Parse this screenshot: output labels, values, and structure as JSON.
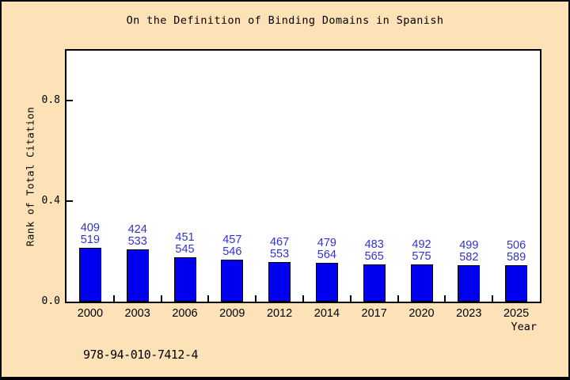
{
  "frame": {
    "footer_isbn": "978-94-010-7412-4"
  },
  "colors": {
    "background": "#fce2b6",
    "plot_background": "#ffffff",
    "bar_fill": "#0000ee",
    "bar_edge": "#000000",
    "value_label": "#3333cc",
    "axis": "#000000"
  },
  "chart_data": {
    "type": "bar",
    "title": "On the Definition of Binding Domains in Spanish",
    "xlabel": "Year",
    "ylabel": "Rank of Total Citation",
    "ylim": [
      0,
      1.0
    ],
    "yticks": [
      "0.0",
      "0.4",
      "0.8"
    ],
    "grid": false,
    "legend": false,
    "categories": [
      "2000",
      "2003",
      "2006",
      "2009",
      "2012",
      "2014",
      "2017",
      "2020",
      "2023",
      "2025"
    ],
    "series": [
      {
        "name": "rank",
        "values": [
          409,
          424,
          451,
          457,
          467,
          479,
          483,
          492,
          499,
          506
        ]
      },
      {
        "name": "total",
        "values": [
          519,
          533,
          545,
          546,
          553,
          564,
          565,
          575,
          582,
          589
        ]
      }
    ],
    "bar_label_lines": [
      [
        "409",
        "519"
      ],
      [
        "424",
        "533"
      ],
      [
        "451",
        "545"
      ],
      [
        "457",
        "546"
      ],
      [
        "467",
        "553"
      ],
      [
        "479",
        "564"
      ],
      [
        "483",
        "565"
      ],
      [
        "492",
        "575"
      ],
      [
        "499",
        "582"
      ],
      [
        "506",
        "589"
      ]
    ],
    "values": [
      0.2119,
      0.2045,
      0.1725,
      0.163,
      0.1555,
      0.1507,
      0.1451,
      0.1443,
      0.1426,
      0.1409
    ]
  }
}
